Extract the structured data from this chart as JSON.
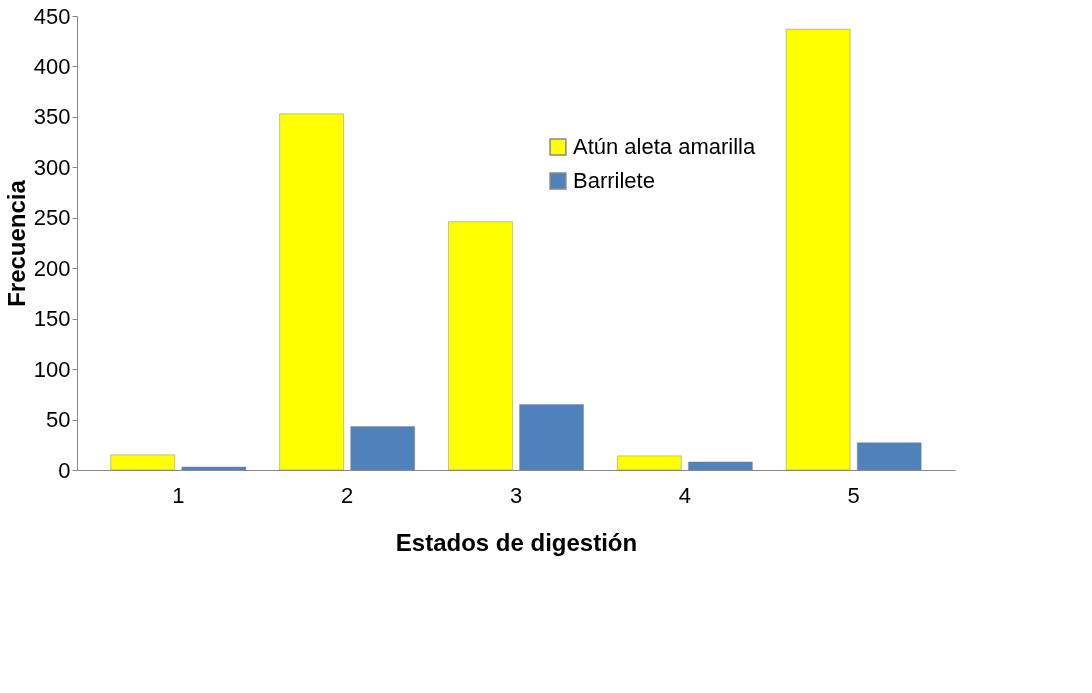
{
  "chart_data": {
    "type": "bar",
    "xlabel": "Estados de digestión",
    "ylabel": "Frecuencia",
    "categories": [
      "1",
      "2",
      "3",
      "4",
      "5"
    ],
    "series": [
      {
        "name": "Atún aleta amarilla",
        "color": "#ffff00",
        "values": [
          15,
          353,
          246,
          14,
          437
        ]
      },
      {
        "name": "Barrilete",
        "color": "#4f81bd",
        "values": [
          3,
          43,
          65,
          8,
          27
        ]
      }
    ],
    "ylim": [
      0,
      450
    ],
    "yticks": [
      0,
      50,
      100,
      150,
      200,
      250,
      300,
      350,
      400,
      450
    ],
    "grid": false,
    "legend": "top right"
  }
}
